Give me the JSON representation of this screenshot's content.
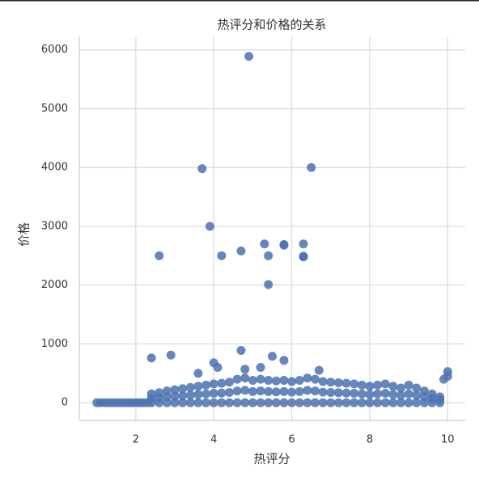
{
  "chart_data": {
    "type": "scatter",
    "title": "热评分和价格的关系",
    "x_label": "热评分",
    "y_label": "价格",
    "color": "#4c72b0",
    "grid": true,
    "xlim": [
      0.55,
      10.45
    ],
    "ylim": [
      -300,
      6230
    ],
    "xticks": [
      2,
      4,
      6,
      8,
      10
    ],
    "yticks": [
      0,
      1000,
      2000,
      3000,
      4000,
      5000,
      6000
    ],
    "x": [
      1.0,
      1.1,
      1.2,
      1.3,
      1.4,
      1.5,
      1.6,
      1.7,
      1.8,
      1.9,
      2.0,
      2.1,
      2.2,
      2.3,
      2.4,
      2.4,
      2.4,
      2.6,
      2.6,
      2.6,
      2.8,
      2.8,
      2.8,
      3.0,
      3.0,
      3.0,
      3.2,
      3.2,
      3.2,
      3.4,
      3.4,
      3.4,
      3.6,
      3.6,
      3.6,
      3.8,
      3.8,
      3.8,
      4.0,
      4.0,
      4.0,
      4.2,
      4.2,
      4.2,
      4.4,
      4.4,
      4.4,
      4.6,
      4.6,
      4.6,
      4.8,
      4.8,
      4.8,
      5.0,
      5.0,
      5.0,
      5.2,
      5.2,
      5.2,
      5.4,
      5.4,
      5.4,
      5.6,
      5.6,
      5.6,
      5.8,
      5.8,
      5.8,
      6.0,
      6.0,
      6.0,
      6.2,
      6.2,
      6.2,
      6.4,
      6.4,
      6.4,
      6.6,
      6.6,
      6.6,
      6.8,
      6.8,
      6.8,
      7.0,
      7.0,
      7.0,
      7.2,
      7.2,
      7.2,
      7.4,
      7.4,
      7.4,
      7.6,
      7.6,
      7.6,
      7.8,
      7.8,
      7.8,
      8.0,
      8.0,
      8.0,
      8.2,
      8.2,
      8.2,
      8.4,
      8.4,
      8.4,
      8.6,
      8.6,
      8.6,
      8.8,
      8.8,
      8.8,
      9.0,
      9.0,
      9.0,
      9.2,
      9.2,
      9.2,
      9.4,
      9.4,
      9.4,
      9.6,
      9.6,
      9.6,
      9.8,
      9.8,
      9.8,
      4.9,
      3.7,
      6.5,
      3.9,
      2.6,
      4.2,
      4.7,
      5.3,
      5.4,
      5.8,
      5.8,
      6.3,
      6.3,
      6.3,
      5.4,
      2.4,
      2.9,
      4.7,
      5.5,
      5.8,
      4.0,
      4.1,
      3.6,
      6.7,
      10.0,
      9.9,
      10.0,
      5.2,
      4.8
    ],
    "values": [
      0,
      0,
      0,
      0,
      0,
      0,
      0,
      0,
      0,
      0,
      0,
      0,
      0,
      0,
      0,
      75,
      150,
      0,
      85,
      170,
      0,
      100,
      200,
      0,
      110,
      220,
      0,
      120,
      240,
      0,
      130,
      260,
      0,
      140,
      280,
      0,
      150,
      300,
      0,
      160,
      320,
      0,
      165,
      330,
      0,
      175,
      350,
      0,
      200,
      400,
      0,
      210,
      420,
      0,
      190,
      380,
      0,
      200,
      400,
      0,
      190,
      380,
      0,
      185,
      370,
      0,
      190,
      380,
      0,
      180,
      360,
      0,
      190,
      380,
      0,
      210,
      420,
      0,
      200,
      400,
      0,
      180,
      360,
      0,
      175,
      350,
      0,
      170,
      340,
      0,
      165,
      330,
      0,
      160,
      320,
      0,
      150,
      300,
      0,
      140,
      280,
      0,
      150,
      300,
      0,
      160,
      320,
      0,
      140,
      280,
      0,
      125,
      250,
      0,
      150,
      300,
      0,
      125,
      250,
      0,
      100,
      200,
      0,
      75,
      150,
      0,
      50,
      100,
      5890,
      3980,
      4000,
      3000,
      2500,
      2500,
      2580,
      2700,
      2500,
      2680,
      2690,
      2700,
      2490,
      2480,
      2010,
      760,
      810,
      890,
      790,
      720,
      680,
      600,
      500,
      550,
      530,
      400,
      450,
      600,
      570
    ]
  }
}
